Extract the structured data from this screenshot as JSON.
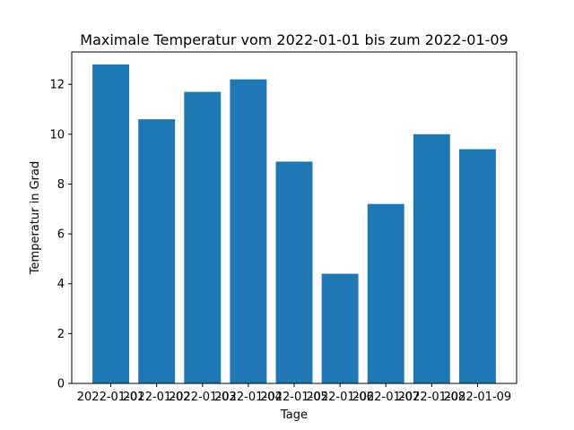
{
  "chart_data": {
    "type": "bar",
    "title": "Maximale Temperatur vom 2022-01-01 bis zum 2022-01-09",
    "xlabel": "Tage",
    "ylabel": "Temperatur in Grad",
    "categories": [
      "2022-01-01",
      "2022-01-02",
      "2022-01-03",
      "2022-01-04",
      "2022-01-05",
      "2022-01-06",
      "2022-01-07",
      "2022-01-08",
      "2022-01-09"
    ],
    "values": [
      12.8,
      10.6,
      11.7,
      12.2,
      8.9,
      4.4,
      7.2,
      10.0,
      9.4
    ],
    "ylim": [
      0,
      13.3
    ],
    "yticks": [
      0,
      2,
      4,
      6,
      8,
      10,
      12
    ],
    "grid": false,
    "colors": {
      "bar": "#1f77b4",
      "axis": "#000000",
      "background": "#ffffff"
    }
  }
}
